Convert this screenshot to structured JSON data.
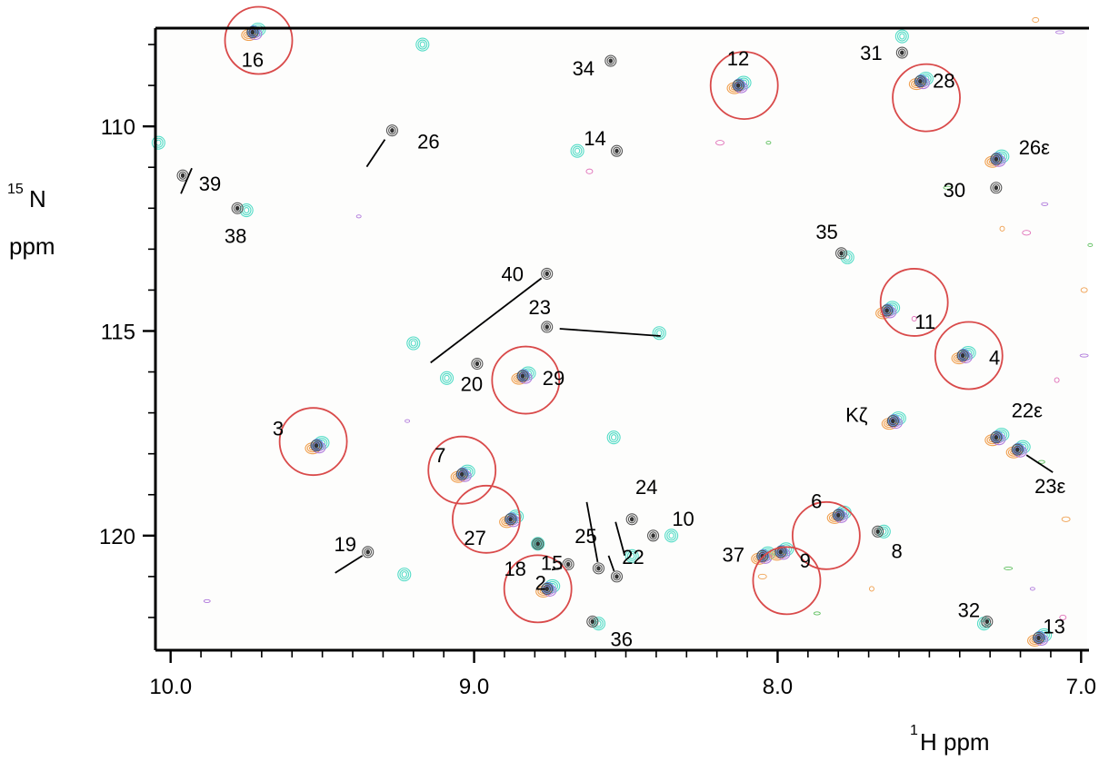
{
  "chart_data": {
    "type": "scatter",
    "xlabel": "H ppm",
    "xlabel_sup": "1",
    "ylabel_line1": "N",
    "ylabel_sup": "15",
    "ylabel_line2": "ppm",
    "xlim": [
      10.05,
      6.98
    ],
    "ylim": [
      107.6,
      122.8
    ],
    "x_ticks": [
      10.0,
      9.0,
      8.0,
      7.0
    ],
    "x_tick_labels": [
      "10.0",
      "9.0",
      "8.0",
      "7.0"
    ],
    "y_ticks": [
      110,
      115,
      120
    ],
    "y_tick_labels": [
      "110",
      "115",
      "120"
    ],
    "colors": {
      "circle": "#d94a4a",
      "reference": "#555555",
      "cyan": "#55dcc7",
      "orange": "#f0a050",
      "purple": "#b07adc",
      "pink": "#e070b8",
      "green": "#60c060",
      "blue": "#5a8fe0",
      "dark_orange": "#b04010"
    },
    "circled": [
      {
        "label": "16",
        "x": 9.71,
        "y": 107.9
      },
      {
        "label": "12",
        "x": 8.11,
        "y": 109.0
      },
      {
        "label": "28",
        "x": 7.51,
        "y": 109.3
      },
      {
        "label": "11",
        "x": 7.55,
        "y": 114.3
      },
      {
        "label": "4",
        "x": 7.37,
        "y": 115.6
      },
      {
        "label": "29",
        "x": 8.83,
        "y": 116.2
      },
      {
        "label": "3",
        "x": 9.53,
        "y": 117.7
      },
      {
        "label": "7",
        "x": 9.04,
        "y": 118.4
      },
      {
        "label": "27",
        "x": 8.96,
        "y": 119.6
      },
      {
        "label": "6",
        "x": 7.84,
        "y": 120.0
      },
      {
        "label": "9",
        "x": 7.97,
        "y": 121.1
      },
      {
        "label": "2",
        "x": 8.79,
        "y": 121.3
      }
    ],
    "peaks": [
      {
        "label": "16",
        "x": 9.73,
        "y": 107.7
      },
      {
        "label": "26",
        "x": 9.27,
        "y": 110.1
      },
      {
        "label": "39",
        "x": 9.96,
        "y": 111.2
      },
      {
        "label": "38",
        "x": 9.78,
        "y": 112.0
      },
      {
        "label": "34",
        "x": 8.55,
        "y": 108.4
      },
      {
        "label": "14",
        "x": 8.53,
        "y": 110.6
      },
      {
        "label": "12",
        "x": 8.13,
        "y": 109.0
      },
      {
        "label": "31",
        "x": 7.59,
        "y": 108.2
      },
      {
        "label": "28",
        "x": 7.53,
        "y": 108.9
      },
      {
        "label": "26ε",
        "x": 7.28,
        "y": 110.8
      },
      {
        "label": "30",
        "x": 7.28,
        "y": 111.5
      },
      {
        "label": "35",
        "x": 7.79,
        "y": 113.1
      },
      {
        "label": "11",
        "x": 7.64,
        "y": 114.5
      },
      {
        "label": "40",
        "x": 8.76,
        "y": 113.6
      },
      {
        "label": "23",
        "x": 8.76,
        "y": 114.9
      },
      {
        "label": "20",
        "x": 8.99,
        "y": 115.8
      },
      {
        "label": "29",
        "x": 8.84,
        "y": 116.1
      },
      {
        "label": "4",
        "x": 7.39,
        "y": 115.6
      },
      {
        "label": "Kζ",
        "x": 7.62,
        "y": 117.2
      },
      {
        "label": "22ε",
        "x": 7.28,
        "y": 117.6
      },
      {
        "label": "23ε",
        "x": 7.21,
        "y": 117.9
      },
      {
        "label": "3",
        "x": 9.52,
        "y": 117.8
      },
      {
        "label": "7",
        "x": 9.04,
        "y": 118.5
      },
      {
        "label": "24",
        "x": 8.48,
        "y": 119.6
      },
      {
        "label": "10",
        "x": 8.41,
        "y": 120.0
      },
      {
        "label": "27",
        "x": 8.88,
        "y": 119.6
      },
      {
        "label": "18",
        "x": 8.79,
        "y": 120.2
      },
      {
        "label": "15",
        "x": 8.69,
        "y": 120.7
      },
      {
        "label": "25",
        "x": 8.59,
        "y": 120.8
      },
      {
        "label": "22",
        "x": 8.53,
        "y": 121.0
      },
      {
        "label": "19",
        "x": 9.35,
        "y": 120.4
      },
      {
        "label": "2",
        "x": 8.76,
        "y": 121.3
      },
      {
        "label": "6",
        "x": 7.8,
        "y": 119.5
      },
      {
        "label": "8",
        "x": 7.67,
        "y": 119.9
      },
      {
        "label": "37",
        "x": 8.05,
        "y": 120.5
      },
      {
        "label": "9",
        "x": 7.99,
        "y": 120.4
      },
      {
        "label": "36",
        "x": 8.61,
        "y": 122.1
      },
      {
        "label": "32",
        "x": 7.31,
        "y": 122.1
      },
      {
        "label": "13",
        "x": 7.14,
        "y": 122.5
      }
    ]
  }
}
